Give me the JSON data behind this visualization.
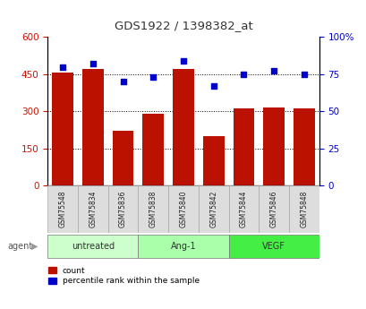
{
  "title": "GDS1922 / 1398382_at",
  "categories": [
    "GSM75548",
    "GSM75834",
    "GSM75836",
    "GSM75838",
    "GSM75840",
    "GSM75842",
    "GSM75844",
    "GSM75846",
    "GSM75848"
  ],
  "bar_values": [
    455,
    470,
    220,
    290,
    470,
    200,
    310,
    315,
    310
  ],
  "percentile_values": [
    80,
    82,
    70,
    73,
    84,
    67,
    75,
    77,
    75
  ],
  "bar_color": "#bb1100",
  "dot_color": "#0000cc",
  "left_ylim": [
    0,
    600
  ],
  "left_yticks": [
    0,
    150,
    300,
    450,
    600
  ],
  "right_ylim": [
    0,
    100
  ],
  "right_yticks": [
    0,
    25,
    50,
    75,
    100
  ],
  "right_yticklabels": [
    "0",
    "25",
    "50",
    "75",
    "100%"
  ],
  "groups": [
    {
      "label": "untreated",
      "indices": [
        0,
        1,
        2
      ],
      "color": "#ccffcc"
    },
    {
      "label": "Ang-1",
      "indices": [
        3,
        4,
        5
      ],
      "color": "#aaffaa"
    },
    {
      "label": "VEGF",
      "indices": [
        6,
        7,
        8
      ],
      "color": "#44ee44"
    }
  ],
  "legend_count_label": "count",
  "legend_percentile_label": "percentile rank within the sample",
  "xlabel_group_label": "agent",
  "background_color": "#ffffff",
  "plot_bg_color": "#ffffff",
  "tick_label_color_left": "#cc1100",
  "tick_label_color_right": "#0000cc",
  "title_color": "#333333",
  "bar_width": 0.7,
  "cell_color": "#dddddd",
  "cell_edge_color": "#aaaaaa"
}
